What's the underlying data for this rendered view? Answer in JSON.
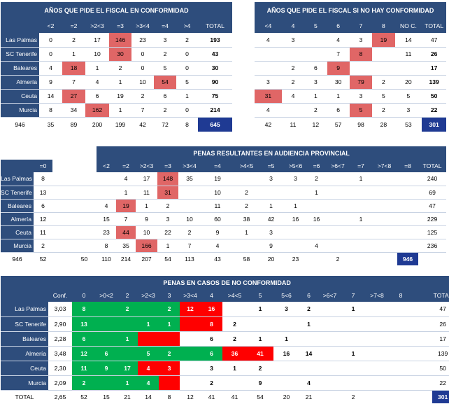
{
  "t1": {
    "title": "AÑOS QUE PIDE EL FISCAL  EN CONFORMIDAD",
    "headers": [
      "<2",
      "=2",
      ">2<3",
      "=3",
      ">3<4",
      "=4",
      ">4",
      "TOTAL"
    ],
    "rows": [
      {
        "label": "Las Palmas",
        "cells": [
          "0",
          "2",
          "17",
          "146",
          "23",
          "3",
          "2",
          "193"
        ]
      },
      {
        "label": "SC Tenerife",
        "cells": [
          "0",
          "1",
          "10",
          "30",
          "0",
          "2",
          "0",
          "43"
        ]
      },
      {
        "label": "Baleares",
        "cells": [
          "4",
          "18",
          "1",
          "2",
          "0",
          "5",
          "0",
          "30"
        ]
      },
      {
        "label": "Almería",
        "cells": [
          "9",
          "7",
          "4",
          "1",
          "10",
          "54",
          "5",
          "90"
        ]
      },
      {
        "label": "Ceuta",
        "cells": [
          "14",
          "27",
          "6",
          "19",
          "2",
          "6",
          "1",
          "75"
        ]
      },
      {
        "label": "Murcia",
        "cells": [
          "8",
          "34",
          "162",
          "1",
          "7",
          "2",
          "0",
          "214"
        ]
      }
    ],
    "footer": [
      "946",
      "35",
      "89",
      "200",
      "199",
      "42",
      "72",
      "8",
      "645"
    ]
  },
  "t2": {
    "title": "AÑOS QUE PIDE EL FISCAL SI NO HAY CONFORMIDAD",
    "headers": [
      "<4",
      "4",
      "5",
      "6",
      "7",
      "8",
      "NO C.",
      "TOTAL"
    ],
    "rows": [
      {
        "cells": [
          "4",
          "3",
          "",
          "4",
          "3",
          "19",
          "14",
          "47"
        ]
      },
      {
        "cells": [
          "",
          "",
          "",
          "7",
          "8",
          "",
          "11",
          "26"
        ]
      },
      {
        "cells": [
          "",
          "2",
          "6",
          "9",
          "",
          "",
          "",
          "17"
        ]
      },
      {
        "cells": [
          "3",
          "2",
          "3",
          "30",
          "79",
          "2",
          "20",
          "139"
        ]
      },
      {
        "cells": [
          "31",
          "4",
          "1",
          "1",
          "3",
          "5",
          "5",
          "50"
        ]
      },
      {
        "cells": [
          "4",
          "",
          "2",
          "6",
          "5",
          "2",
          "3",
          "22"
        ]
      }
    ],
    "footer": [
      "42",
      "11",
      "12",
      "57",
      "98",
      "28",
      "53",
      "301"
    ]
  },
  "t3": {
    "title": "PENAS RESULTANTES  EN AUDIENCIA PROVINCIAL",
    "headers": [
      "=0",
      "",
      "<2",
      "=2",
      ">2<3",
      "=3",
      ">3<4",
      "=4",
      ">4<5",
      "=5",
      ">5<6",
      "=6",
      ">6<7",
      "=7",
      ">7<8",
      "=8",
      "TOTAL"
    ],
    "rows": [
      {
        "label": "Las Palmas",
        "cells": [
          "8",
          "",
          "",
          "4",
          "17",
          "148",
          "35",
          "19",
          "",
          "3",
          "3",
          "2",
          "",
          "1",
          "",
          "",
          "240"
        ]
      },
      {
        "label": "SC Tenerife",
        "cells": [
          "13",
          "",
          "",
          "1",
          "11",
          "31",
          "",
          "10",
          "2",
          "",
          "",
          "1",
          "",
          "",
          "",
          "",
          "69"
        ]
      },
      {
        "label": "Baleares",
        "cells": [
          "6",
          "",
          "4",
          "19",
          "1",
          "2",
          "",
          "11",
          "2",
          "1",
          "1",
          "",
          "",
          "",
          "",
          "",
          "47"
        ]
      },
      {
        "label": "Almería",
        "cells": [
          "12",
          "",
          "15",
          "7",
          "9",
          "3",
          "10",
          "60",
          "38",
          "42",
          "16",
          "16",
          "",
          "1",
          "",
          "",
          "229"
        ]
      },
      {
        "label": "Ceuta",
        "cells": [
          "11",
          "",
          "23",
          "44",
          "10",
          "22",
          "2",
          "9",
          "1",
          "3",
          "",
          "",
          "",
          "",
          "",
          "",
          "125"
        ]
      },
      {
        "label": "Murcia",
        "cells": [
          "2",
          "",
          "8",
          "35",
          "166",
          "1",
          "7",
          "4",
          "",
          "9",
          "",
          "4",
          "",
          "",
          "",
          "",
          "236"
        ]
      }
    ],
    "footer": [
      "946",
      "52",
      "",
      "50",
      "110",
      "214",
      "207",
      "54",
      "113",
      "43",
      "58",
      "20",
      "23",
      "",
      "2",
      "",
      "",
      "946"
    ]
  },
  "t4": {
    "title": "PENAS EN CASOS DE NO CONFORMIDAD",
    "headers": [
      "Conf.",
      "0",
      ">0<2",
      "2",
      ">2<3",
      "3",
      ">3<4",
      "4",
      ">4<5",
      "5",
      "5<6",
      "6",
      ">6<7",
      "7",
      ">7<8",
      "8",
      "TOTAL"
    ],
    "rows": [
      {
        "label": "Las Palmas",
        "cells": [
          "3,03",
          "8",
          "",
          "2",
          "",
          "2",
          "12",
          "16",
          "",
          "1",
          "3",
          "2",
          "",
          "1",
          "",
          "",
          "47"
        ]
      },
      {
        "label": "SC Tenerife",
        "cells": [
          "2,90",
          "13",
          "",
          "",
          "1",
          "1",
          "",
          "8",
          "2",
          "",
          "",
          "1",
          "",
          "",
          "",
          "",
          "26"
        ]
      },
      {
        "label": "Baleares",
        "cells": [
          "2,28",
          "6",
          "",
          "1",
          "",
          "",
          "",
          "6",
          "2",
          "1",
          "1",
          "",
          "",
          "",
          "",
          "",
          "17"
        ]
      },
      {
        "label": "Almería",
        "cells": [
          "3,48",
          "12",
          "6",
          "",
          "5",
          "2",
          "",
          "6",
          "36",
          "41",
          "16",
          "14",
          "",
          "1",
          "",
          "",
          "139"
        ]
      },
      {
        "label": "Ceuta",
        "cells": [
          "2,30",
          "11",
          "9",
          "17",
          "4",
          "3",
          "",
          "3",
          "1",
          "2",
          "",
          "",
          "",
          "",
          "",
          "",
          "50"
        ]
      },
      {
        "label": "Murcia",
        "cells": [
          "2,09",
          "2",
          "",
          "1",
          "4",
          "",
          "",
          "2",
          "",
          "9",
          "",
          "4",
          "",
          "",
          "",
          "",
          "22"
        ]
      }
    ],
    "footer": [
      "TOTAL",
      "2,65",
      "52",
      "15",
      "21",
      "14",
      "8",
      "12",
      "41",
      "41",
      "54",
      "20",
      "21",
      "",
      "2",
      "",
      "",
      "301"
    ]
  }
}
